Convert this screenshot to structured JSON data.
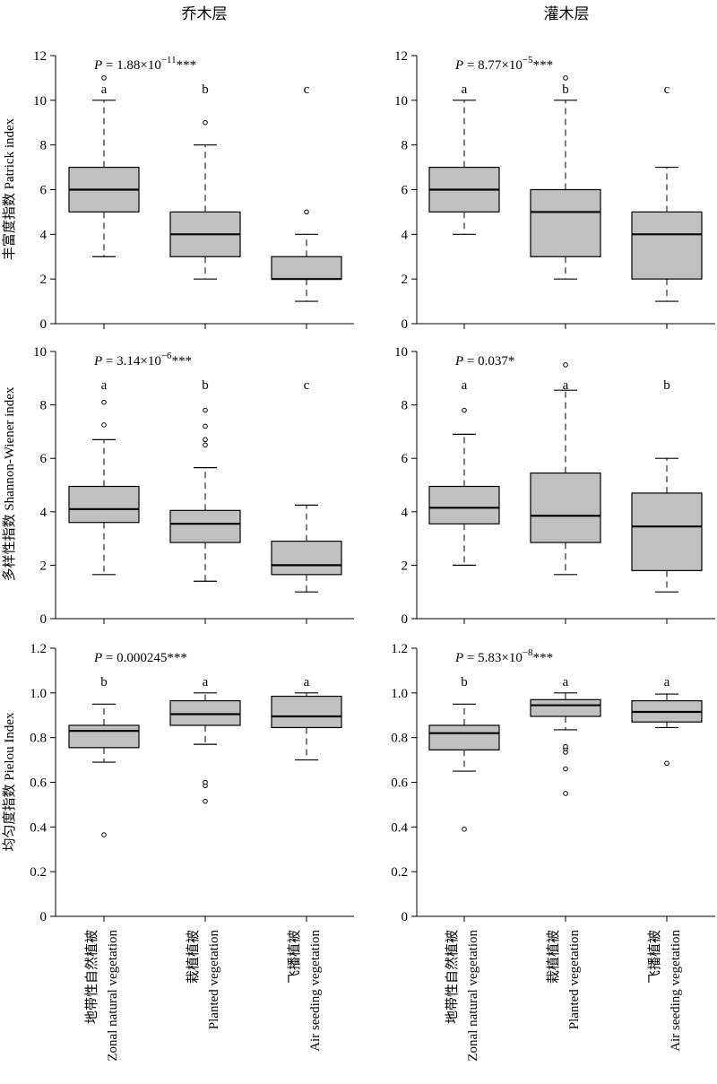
{
  "columns": [
    "乔木层",
    "灌木层"
  ],
  "row_labels": [
    "丰富度指数 Patrick index",
    "多样性指数 Shannon-Wiener index",
    "均匀度指数 Pielou Index"
  ],
  "categories": [
    {
      "cn": "地带性自然植被",
      "en": "Zonal natural vegetation"
    },
    {
      "cn": "栽植植被",
      "en": "Planted vegetation"
    },
    {
      "cn": "飞播植被",
      "en": "Air seeding vegetation"
    }
  ],
  "colors": {
    "box_fill": "#c0c0c0",
    "stroke": "#000000"
  },
  "chart_data": [
    {
      "type": "box",
      "id": "tree-patrick",
      "row": 0,
      "col": 0,
      "ylim": [
        0,
        12
      ],
      "yticks": [
        "0",
        "2",
        "4",
        "6",
        "8",
        "10",
        "12"
      ],
      "p_value": {
        "prefix": "P",
        "text": " = 1.88×10",
        "exp": "−11",
        "suffix": "***"
      },
      "boxes": [
        {
          "whisker_low": 3,
          "q1": 5,
          "median": 6,
          "q3": 7,
          "whisker_high": 10,
          "outliers": [
            11
          ],
          "letter": "a"
        },
        {
          "whisker_low": 2,
          "q1": 3,
          "median": 4,
          "q3": 5,
          "whisker_high": 8,
          "outliers": [
            9
          ],
          "letter": "b"
        },
        {
          "whisker_low": 1,
          "q1": 2,
          "median": 2,
          "q3": 3,
          "whisker_high": 4,
          "outliers": [
            5
          ],
          "letter": "c"
        }
      ]
    },
    {
      "type": "box",
      "id": "shrub-patrick",
      "row": 0,
      "col": 1,
      "ylim": [
        0,
        12
      ],
      "yticks": [
        "0",
        "2",
        "4",
        "6",
        "8",
        "10",
        "12"
      ],
      "p_value": {
        "prefix": "P",
        "text": " = 8.77×10",
        "exp": "−5",
        "suffix": "***"
      },
      "boxes": [
        {
          "whisker_low": 4,
          "q1": 5,
          "median": 6,
          "q3": 7,
          "whisker_high": 10,
          "outliers": [],
          "letter": "a"
        },
        {
          "whisker_low": 2,
          "q1": 3,
          "median": 5,
          "q3": 6,
          "whisker_high": 10,
          "outliers": [
            11
          ],
          "letter": "b"
        },
        {
          "whisker_low": 1,
          "q1": 2,
          "median": 4,
          "q3": 5,
          "whisker_high": 7,
          "outliers": [],
          "letter": "c"
        }
      ]
    },
    {
      "type": "box",
      "id": "tree-shannon",
      "row": 1,
      "col": 0,
      "ylim": [
        0,
        10
      ],
      "yticks": [
        "0",
        "2",
        "4",
        "6",
        "8",
        "10"
      ],
      "p_value": {
        "prefix": "P",
        "text": " = 3.14×10",
        "exp": "−6",
        "suffix": "***"
      },
      "boxes": [
        {
          "whisker_low": 1.65,
          "q1": 3.6,
          "median": 4.1,
          "q3": 4.95,
          "whisker_high": 6.7,
          "outliers": [
            7.25,
            8.1
          ],
          "letter": "a"
        },
        {
          "whisker_low": 1.4,
          "q1": 2.85,
          "median": 3.55,
          "q3": 4.05,
          "whisker_high": 5.65,
          "outliers": [
            6.5,
            6.7,
            7.2,
            7.8
          ],
          "letter": "b"
        },
        {
          "whisker_low": 1.0,
          "q1": 1.65,
          "median": 2.0,
          "q3": 2.9,
          "whisker_high": 4.25,
          "outliers": [],
          "letter": "c"
        }
      ]
    },
    {
      "type": "box",
      "id": "shrub-shannon",
      "row": 1,
      "col": 1,
      "ylim": [
        0,
        10
      ],
      "yticks": [
        "0",
        "2",
        "4",
        "6",
        "8",
        "10"
      ],
      "p_value": {
        "prefix": "P",
        "text": " = 0.037",
        "exp": "",
        "suffix": "*"
      },
      "boxes": [
        {
          "whisker_low": 2.0,
          "q1": 3.55,
          "median": 4.15,
          "q3": 4.95,
          "whisker_high": 6.9,
          "outliers": [
            7.8
          ],
          "letter": "a"
        },
        {
          "whisker_low": 1.65,
          "q1": 2.85,
          "median": 3.85,
          "q3": 5.45,
          "whisker_high": 8.55,
          "outliers": [
            9.5
          ],
          "letter": "a"
        },
        {
          "whisker_low": 1.0,
          "q1": 1.8,
          "median": 3.45,
          "q3": 4.7,
          "whisker_high": 6.0,
          "outliers": [],
          "letter": "b"
        }
      ]
    },
    {
      "type": "box",
      "id": "tree-pielou",
      "row": 2,
      "col": 0,
      "ylim": [
        0,
        1.2
      ],
      "yticks": [
        "0",
        "0.2",
        "0.4",
        "0.6",
        "0.8",
        "1.0",
        "1.2"
      ],
      "p_value": {
        "prefix": "P",
        "text": " = 0.000245",
        "exp": "",
        "suffix": "***"
      },
      "boxes": [
        {
          "whisker_low": 0.69,
          "q1": 0.755,
          "median": 0.83,
          "q3": 0.855,
          "whisker_high": 0.95,
          "outliers": [
            0.365
          ],
          "letter": "b"
        },
        {
          "whisker_low": 0.77,
          "q1": 0.855,
          "median": 0.905,
          "q3": 0.965,
          "whisker_high": 1.0,
          "outliers": [
            0.515,
            0.585,
            0.6
          ],
          "letter": "a"
        },
        {
          "whisker_low": 0.7,
          "q1": 0.845,
          "median": 0.895,
          "q3": 0.985,
          "whisker_high": 1.0,
          "outliers": [],
          "letter": "a"
        }
      ]
    },
    {
      "type": "box",
      "id": "shrub-pielou",
      "row": 2,
      "col": 1,
      "ylim": [
        0,
        1.2
      ],
      "yticks": [
        "0",
        "0.2",
        "0.4",
        "0.6",
        "0.8",
        "1.0",
        "1.2"
      ],
      "p_value": {
        "prefix": "P",
        "text": " = 5.83×10",
        "exp": "−8",
        "suffix": "***"
      },
      "boxes": [
        {
          "whisker_low": 0.65,
          "q1": 0.745,
          "median": 0.82,
          "q3": 0.855,
          "whisker_high": 0.95,
          "outliers": [
            0.39
          ],
          "letter": "b"
        },
        {
          "whisker_low": 0.835,
          "q1": 0.895,
          "median": 0.945,
          "q3": 0.97,
          "whisker_high": 1.0,
          "outliers": [
            0.55,
            0.66,
            0.735,
            0.75,
            0.76
          ],
          "letter": "a"
        },
        {
          "whisker_low": 0.845,
          "q1": 0.87,
          "median": 0.915,
          "q3": 0.965,
          "whisker_high": 0.995,
          "outliers": [
            0.685
          ],
          "letter": "a"
        }
      ]
    }
  ]
}
